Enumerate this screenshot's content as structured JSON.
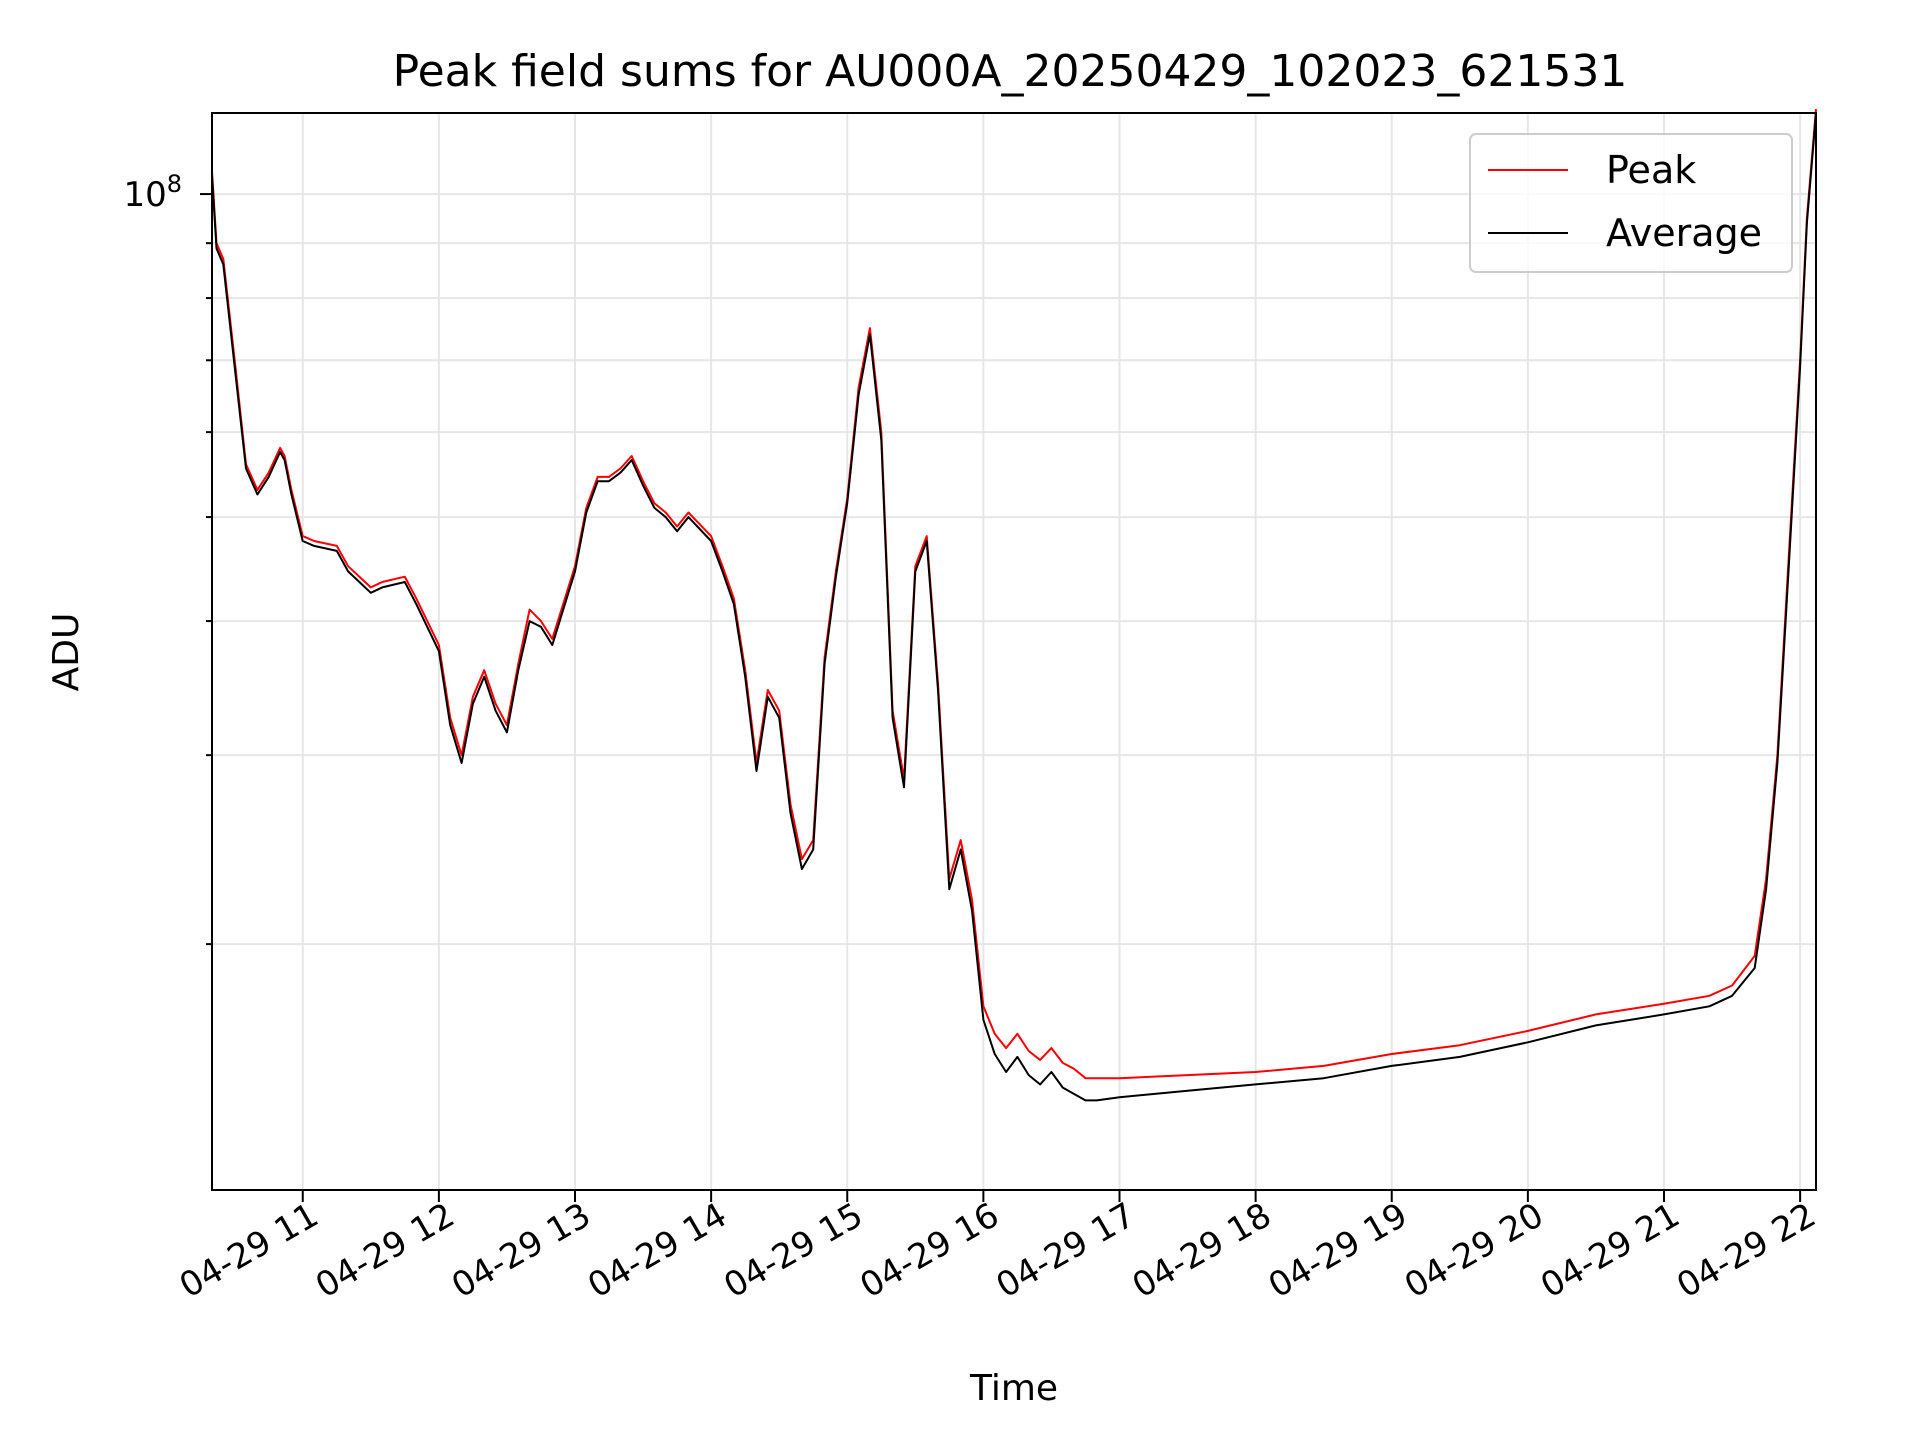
{
  "chart_data": {
    "type": "line",
    "title": "Peak field sums for AU000A_20250429_102023_621531",
    "xlabel": "Time",
    "ylabel": "ADU",
    "yscale": "log",
    "xlim": [
      "04-29 10:20",
      "04-29 22:07"
    ],
    "ylim": [
      11800000,
      119000000
    ],
    "grid": true,
    "legend_position": "top-right",
    "x_ticks": [
      "04-29 11",
      "04-29 12",
      "04-29 13",
      "04-29 14",
      "04-29 15",
      "04-29 16",
      "04-29 17",
      "04-29 18",
      "04-29 19",
      "04-29 20",
      "04-29 21",
      "04-29 22"
    ],
    "y_tick_labels": [
      {
        "base": "10",
        "exponent": "8",
        "value": 100000000
      }
    ],
    "series": [
      {
        "name": "Peak",
        "color": "#ff0000",
        "x": [
          "04-29 10:20",
          "04-29 10:22",
          "04-29 10:25",
          "04-29 10:30",
          "04-29 10:35",
          "04-29 10:40",
          "04-29 10:45",
          "04-29 10:50",
          "04-29 10:52",
          "04-29 10:55",
          "04-29 11:00",
          "04-29 11:05",
          "04-29 11:15",
          "04-29 11:20",
          "04-29 11:30",
          "04-29 11:35",
          "04-29 11:45",
          "04-29 11:50",
          "04-29 12:00",
          "04-29 12:05",
          "04-29 12:10",
          "04-29 12:15",
          "04-29 12:20",
          "04-29 12:25",
          "04-29 12:30",
          "04-29 12:35",
          "04-29 12:40",
          "04-29 12:45",
          "04-29 12:50",
          "04-29 13:00",
          "04-29 13:05",
          "04-29 13:10",
          "04-29 13:15",
          "04-29 13:20",
          "04-29 13:25",
          "04-29 13:30",
          "04-29 13:35",
          "04-29 13:40",
          "04-29 13:45",
          "04-29 13:50",
          "04-29 14:00",
          "04-29 14:05",
          "04-29 14:10",
          "04-29 14:15",
          "04-29 14:20",
          "04-29 14:25",
          "04-29 14:30",
          "04-29 14:35",
          "04-29 14:40",
          "04-29 14:45",
          "04-29 14:50",
          "04-29 14:55",
          "04-29 15:00",
          "04-29 15:05",
          "04-29 15:10",
          "04-29 15:15",
          "04-29 15:20",
          "04-29 15:25",
          "04-29 15:30",
          "04-29 15:35",
          "04-29 15:40",
          "04-29 15:45",
          "04-29 15:50",
          "04-29 15:55",
          "04-29 16:00",
          "04-29 16:05",
          "04-29 16:10",
          "04-29 16:15",
          "04-29 16:20",
          "04-29 16:25",
          "04-29 16:30",
          "04-29 16:35",
          "04-29 16:40",
          "04-29 16:45",
          "04-29 16:50",
          "04-29 17:00",
          "04-29 17:30",
          "04-29 18:00",
          "04-29 18:30",
          "04-29 19:00",
          "04-29 19:30",
          "04-29 20:00",
          "04-29 20:30",
          "04-29 21:00",
          "04-29 21:20",
          "04-29 21:30",
          "04-29 21:40",
          "04-29 21:45",
          "04-29 21:50",
          "04-29 21:55",
          "04-29 22:00",
          "04-29 22:03",
          "04-29 22:07"
        ],
        "values": [
          105000000,
          90000000,
          87000000,
          70000000,
          56000000,
          53000000,
          55000000,
          58000000,
          57000000,
          53000000,
          48000000,
          47500000,
          47000000,
          45000000,
          43000000,
          43500000,
          44000000,
          42000000,
          38000000,
          32500000,
          30000000,
          34000000,
          36000000,
          33500000,
          32000000,
          36500000,
          41000000,
          40000000,
          38500000,
          45000000,
          51000000,
          54500000,
          54500000,
          55500000,
          57000000,
          54000000,
          51500000,
          50500000,
          49000000,
          50500000,
          48000000,
          45000000,
          42000000,
          36000000,
          29500000,
          34500000,
          33000000,
          27000000,
          24000000,
          25000000,
          37000000,
          44500000,
          52000000,
          66000000,
          75000000,
          60000000,
          33000000,
          28500000,
          45000000,
          48000000,
          35000000,
          23000000,
          25000000,
          22000000,
          17500000,
          16500000,
          16000000,
          16500000,
          15900000,
          15600000,
          16000000,
          15500000,
          15300000,
          15000000,
          15000000,
          15000000,
          15100000,
          15200000,
          15400000,
          15800000,
          16100000,
          16600000,
          17200000,
          17600000,
          17900000,
          18300000,
          19500000,
          23000000,
          30000000,
          46000000,
          70000000,
          95000000,
          120000000
        ]
      },
      {
        "name": "Average",
        "color": "#000000",
        "x": [
          "04-29 10:20",
          "04-29 10:22",
          "04-29 10:25",
          "04-29 10:30",
          "04-29 10:35",
          "04-29 10:40",
          "04-29 10:45",
          "04-29 10:50",
          "04-29 10:52",
          "04-29 10:55",
          "04-29 11:00",
          "04-29 11:05",
          "04-29 11:15",
          "04-29 11:20",
          "04-29 11:30",
          "04-29 11:35",
          "04-29 11:45",
          "04-29 11:50",
          "04-29 12:00",
          "04-29 12:05",
          "04-29 12:10",
          "04-29 12:15",
          "04-29 12:20",
          "04-29 12:25",
          "04-29 12:30",
          "04-29 12:35",
          "04-29 12:40",
          "04-29 12:45",
          "04-29 12:50",
          "04-29 13:00",
          "04-29 13:05",
          "04-29 13:10",
          "04-29 13:15",
          "04-29 13:20",
          "04-29 13:25",
          "04-29 13:30",
          "04-29 13:35",
          "04-29 13:40",
          "04-29 13:45",
          "04-29 13:50",
          "04-29 14:00",
          "04-29 14:05",
          "04-29 14:10",
          "04-29 14:15",
          "04-29 14:20",
          "04-29 14:25",
          "04-29 14:30",
          "04-29 14:35",
          "04-29 14:40",
          "04-29 14:45",
          "04-29 14:50",
          "04-29 14:55",
          "04-29 15:00",
          "04-29 15:05",
          "04-29 15:10",
          "04-29 15:15",
          "04-29 15:20",
          "04-29 15:25",
          "04-29 15:30",
          "04-29 15:35",
          "04-29 15:40",
          "04-29 15:45",
          "04-29 15:50",
          "04-29 15:55",
          "04-29 16:00",
          "04-29 16:05",
          "04-29 16:10",
          "04-29 16:15",
          "04-29 16:20",
          "04-29 16:25",
          "04-29 16:30",
          "04-29 16:35",
          "04-29 16:40",
          "04-29 16:45",
          "04-29 16:50",
          "04-29 17:00",
          "04-29 17:30",
          "04-29 18:00",
          "04-29 18:30",
          "04-29 19:00",
          "04-29 19:30",
          "04-29 20:00",
          "04-29 20:30",
          "04-29 21:00",
          "04-29 21:20",
          "04-29 21:30",
          "04-29 21:40",
          "04-29 21:45",
          "04-29 21:50",
          "04-29 21:55",
          "04-29 22:00",
          "04-29 22:03",
          "04-29 22:07"
        ],
        "values": [
          104000000,
          89000000,
          86000000,
          69000000,
          55500000,
          52500000,
          54500000,
          57500000,
          56500000,
          52500000,
          47500000,
          47000000,
          46500000,
          44500000,
          42500000,
          43000000,
          43500000,
          41500000,
          37500000,
          32000000,
          29500000,
          33500000,
          35500000,
          33000000,
          31500000,
          36000000,
          40000000,
          39500000,
          38000000,
          44500000,
          50500000,
          54000000,
          54000000,
          55000000,
          56500000,
          53500000,
          51000000,
          50000000,
          48500000,
          50000000,
          47500000,
          44500000,
          41500000,
          35500000,
          29000000,
          34000000,
          32500000,
          26500000,
          23500000,
          24500000,
          36500000,
          44000000,
          51500000,
          65000000,
          74000000,
          59000000,
          32500000,
          28000000,
          44500000,
          47500000,
          34500000,
          22500000,
          24500000,
          21500000,
          17000000,
          15800000,
          15200000,
          15700000,
          15100000,
          14800000,
          15200000,
          14700000,
          14500000,
          14300000,
          14300000,
          14400000,
          14600000,
          14800000,
          15000000,
          15400000,
          15700000,
          16200000,
          16800000,
          17200000,
          17500000,
          17900000,
          19000000,
          22500000,
          29500000,
          45000000,
          69000000,
          94000000,
          119000000
        ]
      }
    ]
  }
}
